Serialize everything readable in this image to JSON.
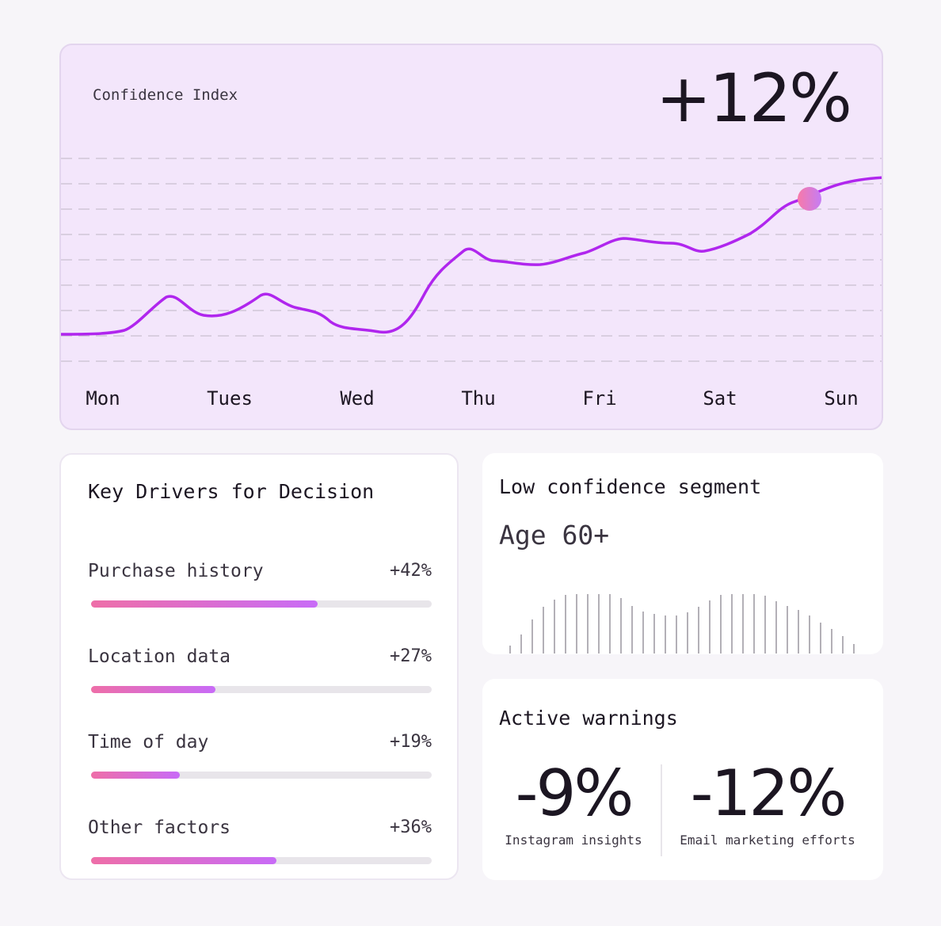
{
  "confidence": {
    "title": "Confidence Index",
    "change": "+12%",
    "days": [
      "Mon",
      "Tues",
      "Wed",
      "Thu",
      "Fri",
      "Sat",
      "Sun"
    ],
    "colors": {
      "line": "#b026ee",
      "background": "#f3e6fb",
      "gridline": "#c9c0cf",
      "dot_start": "#f77aa8",
      "dot_end": "#c57cf5"
    }
  },
  "drivers": {
    "title": "Key Drivers for Decision",
    "items": [
      {
        "label": "Purchase history",
        "value": "+42%",
        "fill": 0.665
      },
      {
        "label": "Location data",
        "value": "+27%",
        "fill": 0.365
      },
      {
        "label": "Time of day",
        "value": "+19%",
        "fill": 0.26
      },
      {
        "label": "Other factors",
        "value": "+36%",
        "fill": 0.545
      }
    ],
    "colors": {
      "bar_start": "#ee6ea8",
      "bar_end": "#c86bf7",
      "track": "#e8e5ea"
    }
  },
  "segment": {
    "title": "Low confidence segment",
    "value": "Age 60+",
    "histogram": [
      10,
      24,
      43,
      59,
      68,
      74,
      75,
      75,
      75,
      75,
      70,
      60,
      53,
      50,
      48,
      48,
      52,
      59,
      67,
      74,
      75,
      75,
      75,
      73,
      66,
      60,
      55,
      48,
      39,
      31,
      22,
      12
    ]
  },
  "warnings": {
    "title": "Active warnings",
    "metrics": [
      {
        "value": "-9%",
        "label": "Instagram insights"
      },
      {
        "value": "-12%",
        "label": "Email marketing efforts"
      }
    ]
  }
}
